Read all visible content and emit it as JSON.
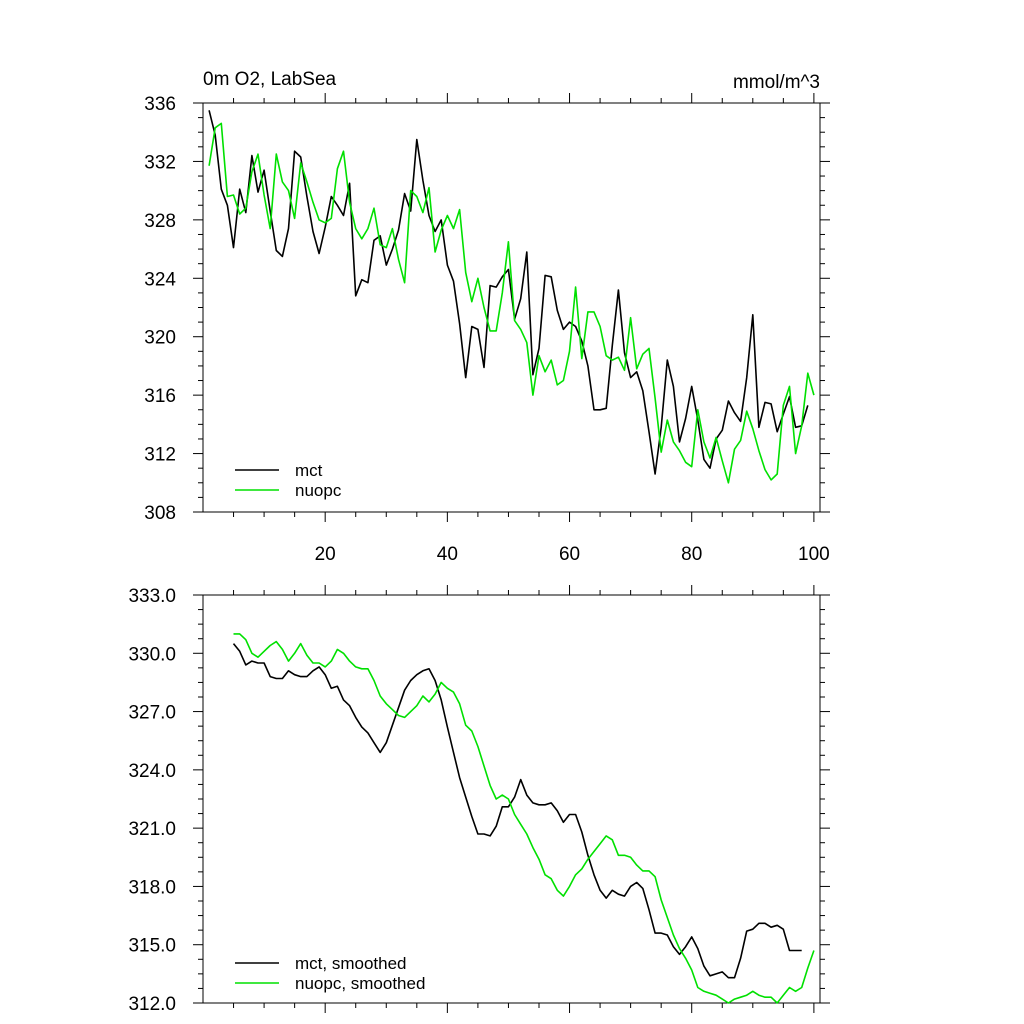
{
  "chart_data": [
    {
      "type": "line",
      "title": "0m O2, LabSea",
      "units": "mmol/m^3",
      "ylim": [
        308,
        336
      ],
      "yticks": [
        308,
        312,
        316,
        320,
        324,
        328,
        332,
        336
      ],
      "ytick_labels": [
        "308",
        "312",
        "316",
        "320",
        "324",
        "328",
        "332",
        "336"
      ],
      "xlim": [
        0,
        101
      ],
      "xticks": [
        20,
        40,
        60,
        80,
        100
      ],
      "xtick_labels": [
        "20",
        "40",
        "60",
        "80",
        "100"
      ],
      "legend_position": "bottom-left",
      "series": [
        {
          "name": "mct",
          "color": "#000000",
          "x_start": 1,
          "values": [
            335.5,
            333.8,
            330.1,
            329.0,
            326.1,
            330.1,
            328.5,
            332.4,
            329.9,
            331.4,
            328.6,
            325.9,
            325.5,
            327.4,
            332.7,
            332.3,
            329.6,
            327.2,
            325.7,
            327.5,
            329.6,
            329.0,
            328.3,
            330.5,
            322.8,
            323.9,
            323.7,
            326.6,
            326.9,
            324.9,
            326.0,
            327.3,
            329.8,
            328.6,
            333.5,
            330.7,
            328.3,
            327.2,
            328.0,
            324.9,
            323.8,
            320.9,
            317.2,
            320.7,
            320.5,
            317.9,
            323.5,
            323.4,
            324.1,
            324.6,
            321.2,
            322.6,
            325.8,
            317.4,
            319.2,
            324.2,
            324.1,
            321.8,
            320.5,
            321.0,
            320.7,
            319.7,
            318.0,
            315.0,
            315.0,
            315.1,
            319.4,
            323.2,
            318.9,
            317.2,
            317.6,
            316.3,
            313.5,
            310.6,
            313.8,
            318.4,
            316.6,
            312.8,
            314.4,
            316.6,
            314.3,
            311.6,
            311.0,
            313.0,
            313.6,
            315.6,
            314.8,
            314.2,
            317.2,
            321.5,
            313.8,
            315.5,
            315.4,
            313.5,
            314.7,
            315.9,
            313.8,
            313.9,
            315.3
          ]
        },
        {
          "name": "nuopc",
          "color": "#00e000",
          "x_start": 1,
          "values": [
            331.7,
            334.3,
            334.6,
            329.6,
            329.7,
            328.4,
            328.8,
            331.3,
            332.5,
            329.7,
            327.4,
            332.5,
            330.6,
            330.0,
            328.1,
            331.9,
            330.6,
            329.2,
            328.0,
            327.8,
            328.1,
            331.5,
            332.7,
            329.2,
            327.4,
            326.7,
            327.4,
            328.8,
            326.3,
            326.1,
            327.4,
            325.3,
            323.7,
            330.0,
            329.6,
            328.5,
            330.2,
            325.8,
            327.3,
            328.3,
            327.4,
            328.7,
            324.4,
            322.4,
            324.0,
            322.0,
            320.4,
            320.4,
            323.0,
            326.5,
            321.1,
            320.5,
            319.6,
            316.0,
            318.7,
            317.6,
            318.4,
            316.7,
            317.0,
            319.0,
            323.4,
            318.5,
            321.7,
            321.7,
            320.7,
            318.7,
            318.4,
            318.6,
            317.7,
            321.3,
            317.8,
            318.8,
            319.2,
            315.8,
            312.1,
            314.3,
            312.8,
            312.2,
            311.4,
            311.1,
            315.0,
            312.8,
            311.7,
            313.1,
            311.5,
            310.0,
            312.3,
            312.9,
            314.9,
            313.7,
            312.2,
            310.9,
            310.2,
            310.6,
            315.3,
            316.6,
            312.0,
            313.9,
            317.5,
            316.0
          ]
        }
      ]
    },
    {
      "type": "line",
      "title": "",
      "ylim": [
        312.0,
        333.0
      ],
      "yticks": [
        312.0,
        315.0,
        318.0,
        321.0,
        324.0,
        327.0,
        330.0,
        333.0
      ],
      "ytick_labels": [
        "312.0",
        "315.0",
        "318.0",
        "321.0",
        "324.0",
        "327.0",
        "330.0",
        "333.0"
      ],
      "xlim": [
        0,
        101
      ],
      "xticks": [
        20,
        40,
        60,
        80,
        100
      ],
      "legend_position": "bottom-left",
      "series": [
        {
          "name": "mct, smoothed",
          "color": "#000000",
          "x_start": 5,
          "values": [
            330.5,
            330.1,
            329.4,
            329.6,
            329.5,
            329.5,
            328.8,
            328.7,
            328.7,
            329.1,
            328.9,
            328.8,
            328.8,
            329.1,
            329.3,
            328.9,
            328.2,
            328.3,
            327.6,
            327.3,
            326.7,
            326.2,
            325.9,
            325.4,
            324.9,
            325.4,
            326.3,
            327.2,
            328.1,
            328.6,
            328.9,
            329.1,
            329.2,
            328.6,
            327.6,
            326.2,
            324.9,
            323.6,
            322.6,
            321.6,
            320.7,
            320.7,
            320.6,
            321.1,
            322.1,
            322.1,
            322.6,
            323.5,
            322.7,
            322.3,
            322.2,
            322.2,
            322.3,
            321.9,
            321.3,
            321.7,
            321.7,
            320.8,
            319.6,
            318.6,
            317.8,
            317.4,
            317.8,
            317.6,
            317.5,
            318.0,
            318.2,
            317.9,
            316.8,
            315.6,
            315.6,
            315.5,
            314.9,
            314.5,
            314.9,
            315.4,
            314.8,
            313.9,
            313.4,
            313.5,
            313.6,
            313.3,
            313.3,
            314.3,
            315.7,
            315.8,
            316.1,
            316.1,
            315.9,
            316.0,
            315.8,
            314.7,
            314.7,
            314.7
          ]
        },
        {
          "name": "nuopc, smoothed",
          "color": "#00e000",
          "x_start": 5,
          "values": [
            331.0,
            331.0,
            330.7,
            330.0,
            329.8,
            330.1,
            330.4,
            330.6,
            330.2,
            329.6,
            330.0,
            330.5,
            329.9,
            329.5,
            329.5,
            329.3,
            329.6,
            330.2,
            330.0,
            329.6,
            329.3,
            329.2,
            329.2,
            328.6,
            327.8,
            327.4,
            327.1,
            326.8,
            326.7,
            327.0,
            327.3,
            327.8,
            327.5,
            327.9,
            328.5,
            328.2,
            328.0,
            327.4,
            326.3,
            326.0,
            325.2,
            324.2,
            323.2,
            322.5,
            322.7,
            322.5,
            321.7,
            321.2,
            320.7,
            320.0,
            319.4,
            318.6,
            318.4,
            317.8,
            317.5,
            318.0,
            318.6,
            318.9,
            319.4,
            319.8,
            320.2,
            320.6,
            320.4,
            319.6,
            319.6,
            319.5,
            319.1,
            318.8,
            318.8,
            318.5,
            317.3,
            316.4,
            315.5,
            314.8,
            314.3,
            313.7,
            312.8,
            312.6,
            312.5,
            312.4,
            312.2,
            312.0,
            312.2,
            312.3,
            312.4,
            312.6,
            312.4,
            312.3,
            312.3,
            312.0,
            312.4,
            312.8,
            312.6,
            312.8,
            313.8,
            314.7
          ]
        }
      ]
    }
  ]
}
